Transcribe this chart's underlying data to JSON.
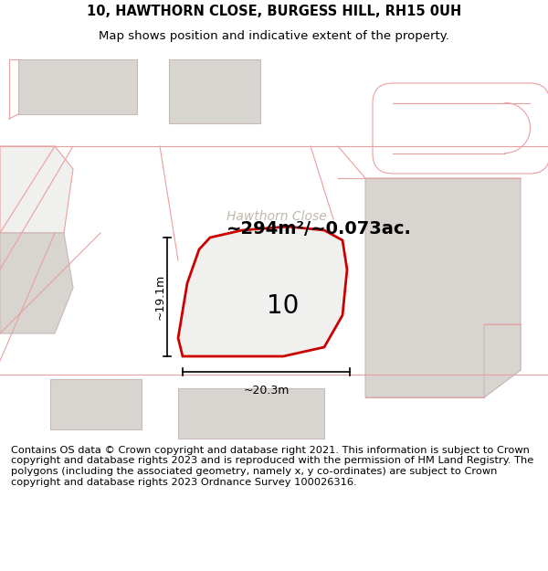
{
  "title_line1": "10, HAWTHORN CLOSE, BURGESS HILL, RH15 0UH",
  "title_line2": "Map shows position and indicative extent of the property.",
  "footer_text": "Contains OS data © Crown copyright and database right 2021. This information is subject to Crown copyright and database rights 2023 and is reproduced with the permission of HM Land Registry. The polygons (including the associated geometry, namely x, y co-ordinates) are subject to Crown copyright and database rights 2023 Ordnance Survey 100026316.",
  "area_label": "~294m²/~0.073ac.",
  "street_label": "Hawthorn Close",
  "number_label": "10",
  "dim_width": "~20.3m",
  "dim_height": "~19.1m",
  "map_bg": "#f0f0ee",
  "road_bg": "#ffffff",
  "plot_fill": "#f0f0ee",
  "plot_stroke": "#cc0000",
  "road_stroke": "#e8a0a0",
  "building_fill": "#d8d5d0",
  "building_stroke": "#c8b8b8",
  "title_fontsize": 10.5,
  "subtitle_fontsize": 9.5,
  "footer_fontsize": 8.2,
  "area_fontsize": 14,
  "street_fontsize": 10,
  "number_fontsize": 20,
  "dim_fontsize": 9
}
